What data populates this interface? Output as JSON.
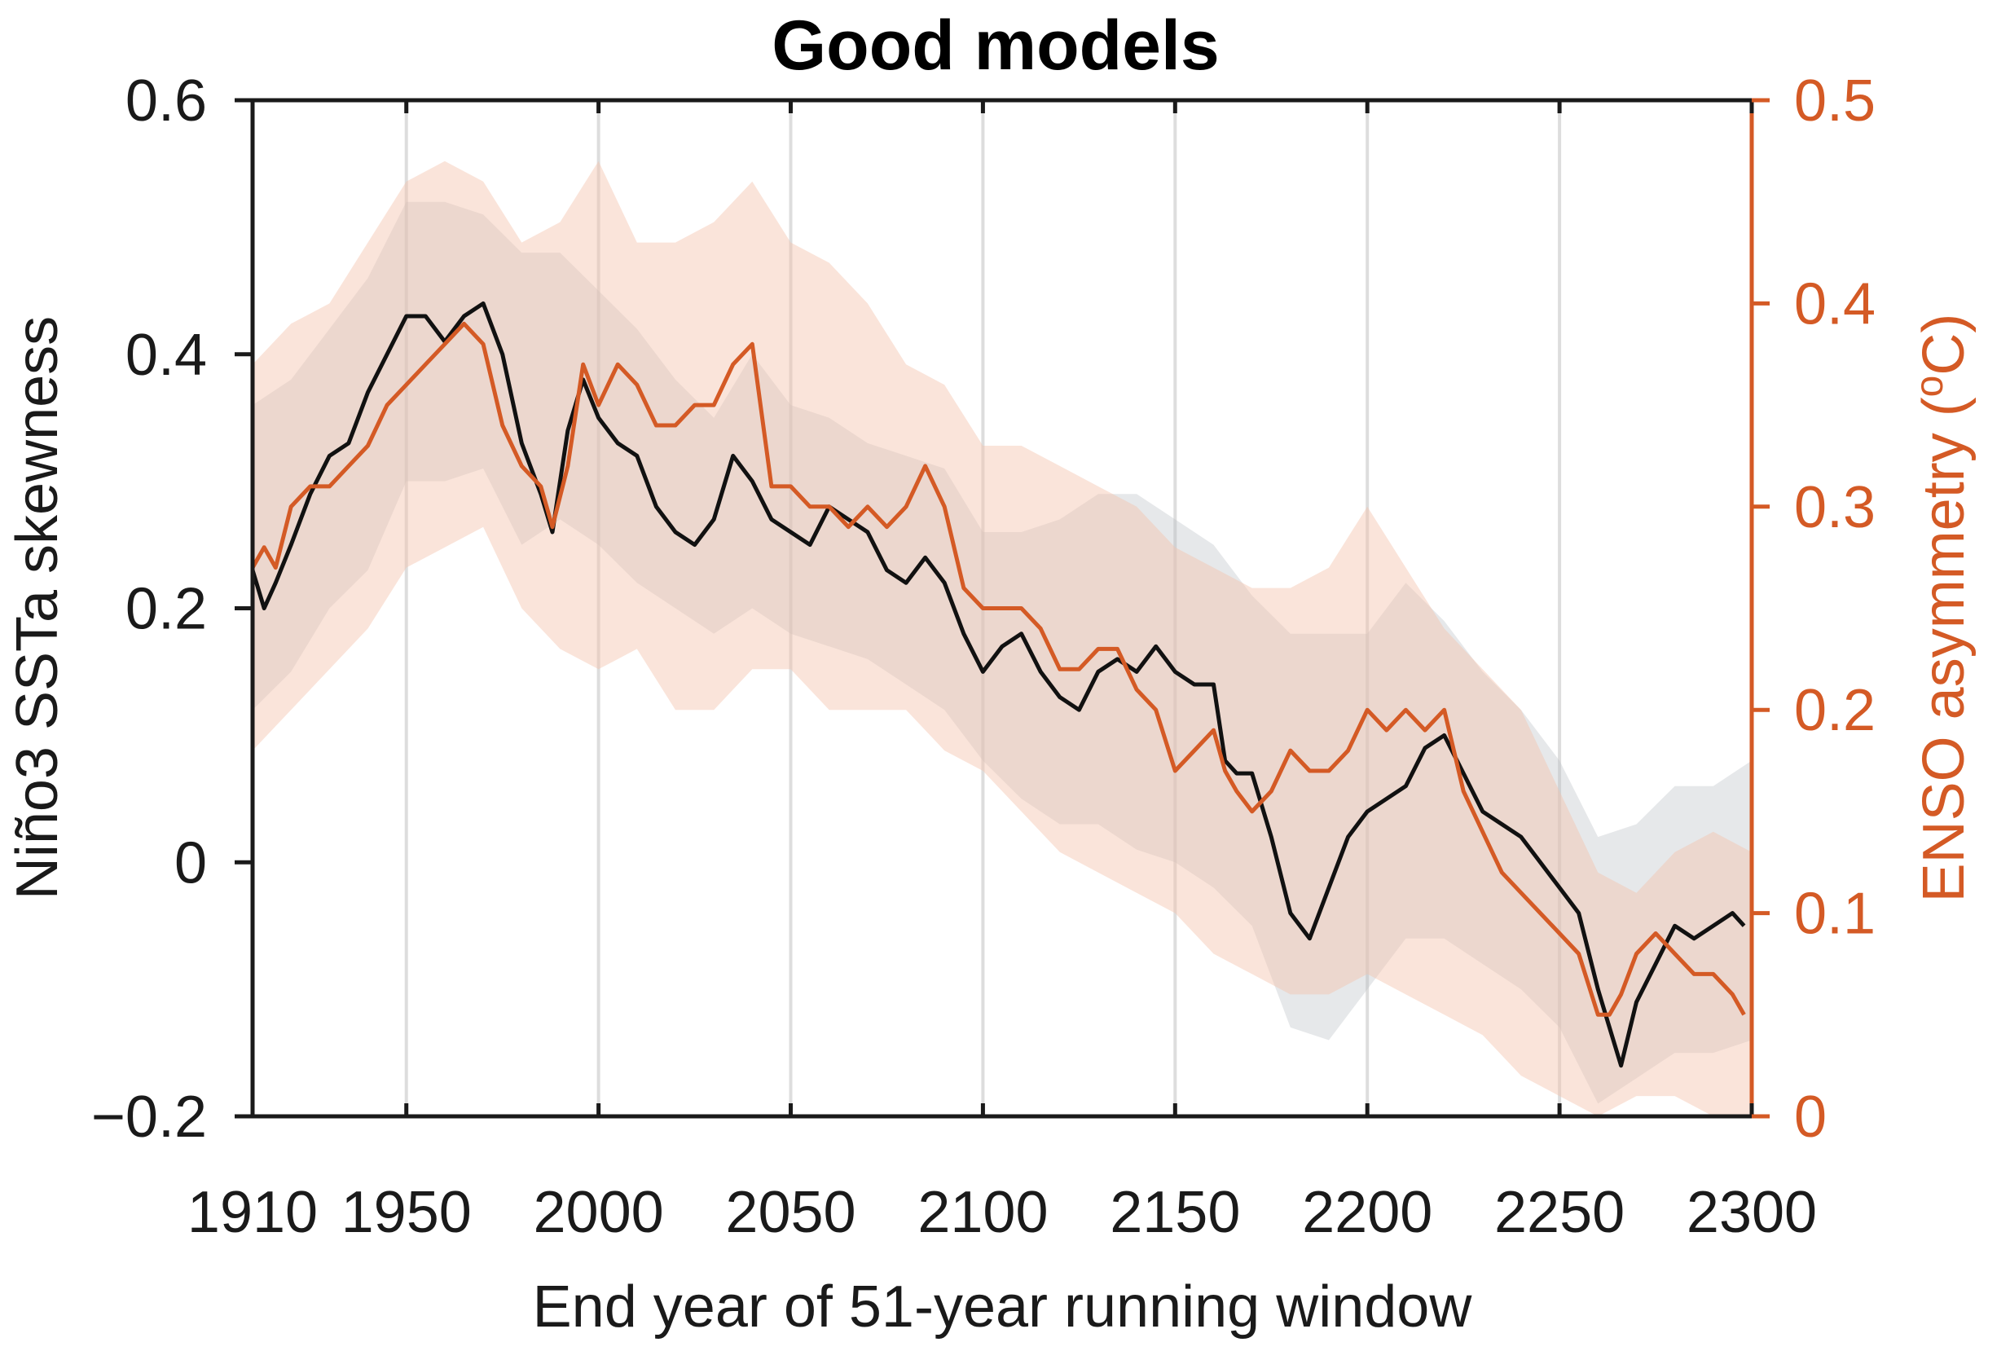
{
  "chart_data": {
    "type": "line",
    "title": "Good models",
    "xlabel": "End year of 51-year running window",
    "ylabel_left": "Niño3 SSTa skewness",
    "ylabel_right": {
      "main": "ENSO asymmetry (",
      "sup": "o",
      "unit": "C)"
    },
    "xlim": [
      1910,
      2300
    ],
    "ylim_left": [
      -0.2,
      0.6
    ],
    "ylim_right": [
      0,
      0.5
    ],
    "x_ticks": [
      1910,
      1950,
      2000,
      2050,
      2100,
      2150,
      2200,
      2250,
      2300
    ],
    "x_tick_labels": [
      "1910",
      "1950",
      "2000",
      "2050",
      "2100",
      "2150",
      "2200",
      "2250",
      "2300"
    ],
    "y_left_ticks": [
      -0.2,
      0,
      0.2,
      0.4,
      0.6
    ],
    "y_left_tick_labels": [
      "−0.2",
      "0",
      "0.2",
      "0.4",
      "0.6"
    ],
    "y_right_ticks": [
      0,
      0.1,
      0.2,
      0.3,
      0.4,
      0.5
    ],
    "y_right_tick_labels": [
      "0",
      "0.1",
      "0.2",
      "0.3",
      "0.4",
      "0.5"
    ],
    "grid": "vertical at x ticks",
    "colors": {
      "skewness": "#111111",
      "asymmetry": "#d45a25",
      "skew_band": "#b8bec4",
      "asym_band": "#f3c4ae",
      "axis_left": "#1a1a1a",
      "axis_right": "#d45a25",
      "grid": "#dddddd"
    },
    "series": [
      {
        "name": "Niño3 SSTa skewness",
        "axis": "left",
        "x": [
          1910,
          1913,
          1916,
          1920,
          1925,
          1930,
          1935,
          1940,
          1945,
          1950,
          1955,
          1960,
          1965,
          1970,
          1975,
          1980,
          1985,
          1988,
          1992,
          1996,
          2000,
          2005,
          2010,
          2015,
          2020,
          2025,
          2030,
          2035,
          2040,
          2045,
          2050,
          2055,
          2060,
          2065,
          2070,
          2075,
          2080,
          2085,
          2090,
          2095,
          2100,
          2105,
          2110,
          2115,
          2120,
          2125,
          2130,
          2135,
          2140,
          2145,
          2150,
          2155,
          2160,
          2163,
          2166,
          2170,
          2175,
          2180,
          2185,
          2190,
          2195,
          2200,
          2205,
          2210,
          2215,
          2220,
          2225,
          2230,
          2235,
          2240,
          2245,
          2250,
          2255,
          2260,
          2263,
          2266,
          2270,
          2275,
          2280,
          2285,
          2290,
          2295,
          2298
        ],
        "y": [
          0.23,
          0.2,
          0.22,
          0.25,
          0.29,
          0.32,
          0.33,
          0.37,
          0.4,
          0.43,
          0.43,
          0.41,
          0.43,
          0.44,
          0.4,
          0.33,
          0.29,
          0.26,
          0.34,
          0.38,
          0.35,
          0.33,
          0.32,
          0.28,
          0.26,
          0.25,
          0.27,
          0.32,
          0.3,
          0.27,
          0.26,
          0.25,
          0.28,
          0.27,
          0.26,
          0.23,
          0.22,
          0.24,
          0.22,
          0.18,
          0.15,
          0.17,
          0.18,
          0.15,
          0.13,
          0.12,
          0.15,
          0.16,
          0.15,
          0.17,
          0.15,
          0.14,
          0.14,
          0.08,
          0.07,
          0.07,
          0.02,
          -0.04,
          -0.06,
          -0.02,
          0.02,
          0.04,
          0.05,
          0.06,
          0.09,
          0.1,
          0.07,
          0.04,
          0.03,
          0.02,
          0,
          -0.02,
          -0.04,
          -0.1,
          -0.13,
          -0.16,
          -0.11,
          -0.08,
          -0.05,
          -0.06,
          -0.05,
          -0.04,
          -0.05
        ]
      },
      {
        "name": "ENSO asymmetry",
        "axis": "right",
        "x": [
          1910,
          1913,
          1916,
          1920,
          1925,
          1930,
          1935,
          1940,
          1945,
          1950,
          1955,
          1960,
          1965,
          1970,
          1975,
          1980,
          1985,
          1988,
          1992,
          1996,
          2000,
          2005,
          2010,
          2015,
          2020,
          2025,
          2030,
          2035,
          2040,
          2045,
          2050,
          2055,
          2060,
          2065,
          2070,
          2075,
          2080,
          2085,
          2090,
          2095,
          2100,
          2105,
          2110,
          2115,
          2120,
          2125,
          2130,
          2135,
          2140,
          2145,
          2150,
          2155,
          2160,
          2163,
          2166,
          2170,
          2175,
          2180,
          2185,
          2190,
          2195,
          2200,
          2205,
          2210,
          2215,
          2220,
          2225,
          2230,
          2235,
          2240,
          2245,
          2250,
          2255,
          2260,
          2263,
          2266,
          2270,
          2275,
          2280,
          2285,
          2290,
          2295,
          2298
        ],
        "y": [
          0.27,
          0.28,
          0.27,
          0.3,
          0.31,
          0.31,
          0.32,
          0.33,
          0.35,
          0.36,
          0.37,
          0.38,
          0.39,
          0.38,
          0.34,
          0.32,
          0.31,
          0.29,
          0.32,
          0.37,
          0.35,
          0.37,
          0.36,
          0.34,
          0.34,
          0.35,
          0.35,
          0.37,
          0.38,
          0.31,
          0.31,
          0.3,
          0.3,
          0.29,
          0.3,
          0.29,
          0.3,
          0.32,
          0.3,
          0.26,
          0.25,
          0.25,
          0.25,
          0.24,
          0.22,
          0.22,
          0.23,
          0.23,
          0.21,
          0.2,
          0.17,
          0.18,
          0.19,
          0.17,
          0.16,
          0.15,
          0.16,
          0.18,
          0.17,
          0.17,
          0.18,
          0.2,
          0.19,
          0.2,
          0.19,
          0.2,
          0.16,
          0.14,
          0.12,
          0.11,
          0.1,
          0.09,
          0.08,
          0.05,
          0.05,
          0.06,
          0.08,
          0.09,
          0.08,
          0.07,
          0.07,
          0.06,
          0.05
        ]
      }
    ],
    "bands": [
      {
        "name": "Niño3 SSTa skewness spread",
        "axis": "left",
        "x": [
          1910,
          1920,
          1930,
          1940,
          1950,
          1960,
          1970,
          1980,
          1990,
          2000,
          2010,
          2020,
          2030,
          2040,
          2050,
          2060,
          2070,
          2080,
          2090,
          2100,
          2110,
          2120,
          2130,
          2140,
          2150,
          2160,
          2170,
          2180,
          2190,
          2200,
          2210,
          2220,
          2230,
          2240,
          2250,
          2260,
          2270,
          2280,
          2290,
          2300
        ],
        "lower": [
          0.12,
          0.15,
          0.2,
          0.23,
          0.3,
          0.3,
          0.31,
          0.25,
          0.27,
          0.25,
          0.22,
          0.2,
          0.18,
          0.2,
          0.18,
          0.17,
          0.16,
          0.14,
          0.12,
          0.08,
          0.05,
          0.03,
          0.03,
          0.01,
          0.0,
          -0.02,
          -0.05,
          -0.13,
          -0.14,
          -0.1,
          -0.06,
          -0.06,
          -0.08,
          -0.1,
          -0.13,
          -0.19,
          -0.17,
          -0.15,
          -0.15,
          -0.14
        ],
        "upper": [
          0.36,
          0.38,
          0.42,
          0.46,
          0.52,
          0.52,
          0.51,
          0.48,
          0.48,
          0.45,
          0.42,
          0.38,
          0.35,
          0.4,
          0.36,
          0.35,
          0.33,
          0.32,
          0.31,
          0.26,
          0.26,
          0.27,
          0.29,
          0.29,
          0.27,
          0.25,
          0.21,
          0.18,
          0.18,
          0.18,
          0.22,
          0.19,
          0.15,
          0.12,
          0.08,
          0.02,
          0.03,
          0.06,
          0.06,
          0.08
        ]
      },
      {
        "name": "ENSO asymmetry spread",
        "axis": "right",
        "x": [
          1910,
          1920,
          1930,
          1940,
          1950,
          1960,
          1970,
          1980,
          1990,
          2000,
          2010,
          2020,
          2030,
          2040,
          2050,
          2060,
          2070,
          2080,
          2090,
          2100,
          2110,
          2120,
          2130,
          2140,
          2150,
          2160,
          2170,
          2180,
          2190,
          2200,
          2210,
          2220,
          2230,
          2240,
          2250,
          2260,
          2270,
          2280,
          2290,
          2300
        ],
        "lower": [
          0.18,
          0.2,
          0.22,
          0.24,
          0.27,
          0.28,
          0.29,
          0.25,
          0.23,
          0.22,
          0.23,
          0.2,
          0.2,
          0.22,
          0.22,
          0.2,
          0.2,
          0.2,
          0.18,
          0.17,
          0.15,
          0.13,
          0.12,
          0.11,
          0.1,
          0.08,
          0.07,
          0.06,
          0.06,
          0.07,
          0.06,
          0.05,
          0.04,
          0.02,
          0.01,
          0.0,
          0.01,
          0.01,
          0.0,
          0.0
        ],
        "upper": [
          0.37,
          0.39,
          0.4,
          0.43,
          0.46,
          0.47,
          0.46,
          0.43,
          0.44,
          0.47,
          0.43,
          0.43,
          0.44,
          0.46,
          0.43,
          0.42,
          0.4,
          0.37,
          0.36,
          0.33,
          0.33,
          0.32,
          0.31,
          0.3,
          0.28,
          0.27,
          0.26,
          0.26,
          0.27,
          0.3,
          0.27,
          0.24,
          0.22,
          0.2,
          0.16,
          0.12,
          0.11,
          0.13,
          0.14,
          0.13
        ]
      }
    ]
  }
}
